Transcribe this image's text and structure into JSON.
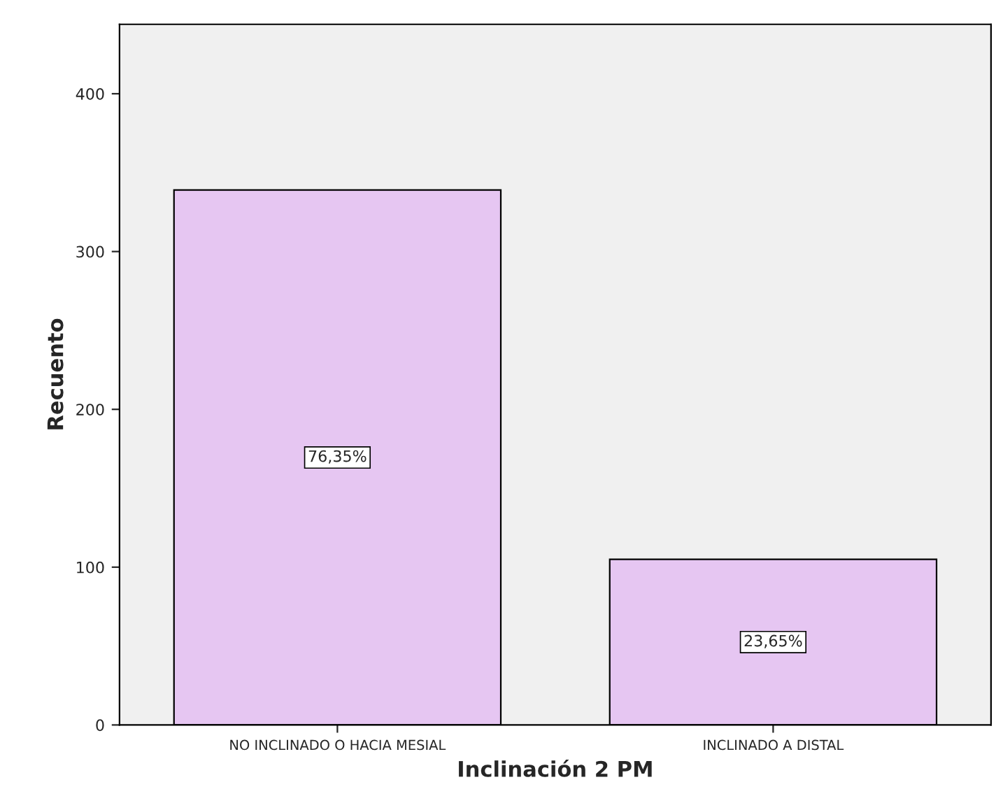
{
  "chart_data": {
    "type": "bar",
    "xlabel": "Inclinación 2 PM",
    "ylabel": "Recuento",
    "categories": [
      "NO INCLINADO O HACIA MESIAL",
      "INCLINADO A DISTAL"
    ],
    "values": [
      339,
      105
    ],
    "color": "#e6c6f2",
    "annotations": [
      "76,35%",
      "23,65%"
    ],
    "ylim": [
      0,
      444
    ],
    "yticks": [
      0,
      100,
      200,
      300,
      400
    ],
    "grid": false
  }
}
